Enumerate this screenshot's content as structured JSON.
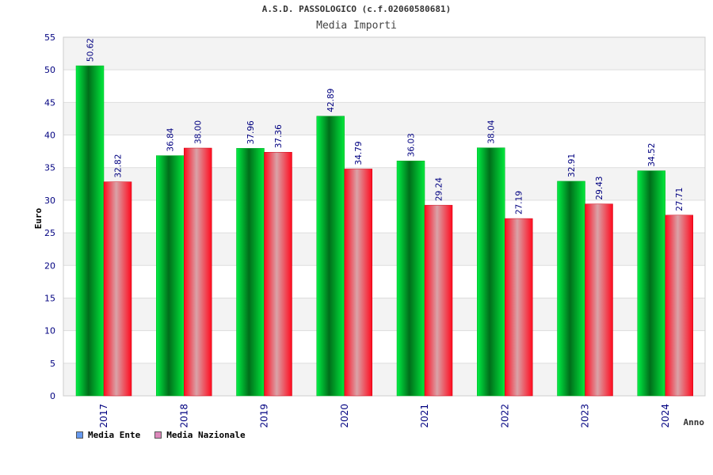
{
  "chart_data": {
    "type": "bar",
    "title": "A.S.D. PASSOLOGICO (c.f.02060580681)",
    "subtitle": "Media Importi",
    "xlabel": "Anno",
    "ylabel": "Euro",
    "ylim": [
      0,
      55
    ],
    "yticks": [
      0,
      5,
      10,
      15,
      20,
      25,
      30,
      35,
      40,
      45,
      50,
      55
    ],
    "categories": [
      "2017",
      "2018",
      "2019",
      "2020",
      "2021",
      "2022",
      "2023",
      "2024"
    ],
    "series": [
      {
        "name": "Media Ente",
        "values": [
          50.62,
          36.84,
          37.96,
          42.89,
          36.03,
          38.04,
          32.91,
          34.52
        ],
        "labels": [
          "50.62",
          "36.84",
          "37.96",
          "42.89",
          "36.03",
          "38.04",
          "32.91",
          "34.52"
        ],
        "color": "#00cc33",
        "legend_color": "#6699ee"
      },
      {
        "name": "Media Nazionale",
        "values": [
          32.82,
          38.0,
          37.36,
          34.79,
          29.24,
          27.19,
          29.43,
          27.71
        ],
        "labels": [
          "32.82",
          "38.00",
          "37.36",
          "34.79",
          "29.24",
          "27.19",
          "29.43",
          "27.71"
        ],
        "color": "#ee1122",
        "legend_color": "#dd88bb"
      }
    ],
    "grid": true,
    "legend_position": "bottom-left"
  }
}
